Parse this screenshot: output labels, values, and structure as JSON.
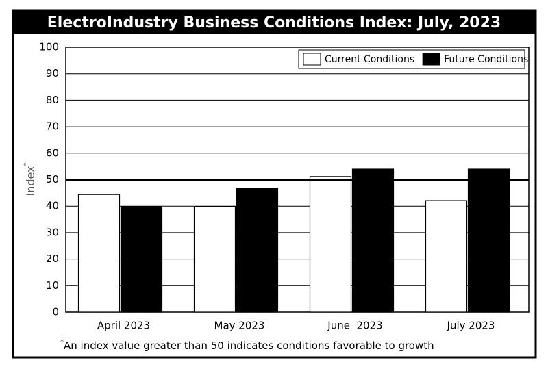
{
  "chart_data": {
    "type": "bar",
    "title": "ElectroIndustry Business Conditions Index: July, 2023",
    "y_label": "Index",
    "y_label_mark": "*",
    "footnote_mark": "*",
    "footnote": "An index value greater than 50 indicates conditions favorable to growth",
    "categories": [
      "April 2023",
      "May 2023",
      "June  2023",
      "July 2023"
    ],
    "series": [
      {
        "name": "Current Conditions",
        "color": "#ffffff",
        "values": [
          44.4,
          39.8,
          51.2,
          42.1
        ]
      },
      {
        "name": "Future Conditions",
        "color": "#000000",
        "values": [
          39.8,
          46.8,
          54.0,
          54.0
        ]
      }
    ],
    "ylim": [
      0,
      100
    ],
    "yticks": [
      0,
      10,
      20,
      30,
      40,
      50,
      60,
      70,
      80,
      90,
      100
    ],
    "reference_line": 50,
    "grid": true,
    "legend": "top-right"
  }
}
